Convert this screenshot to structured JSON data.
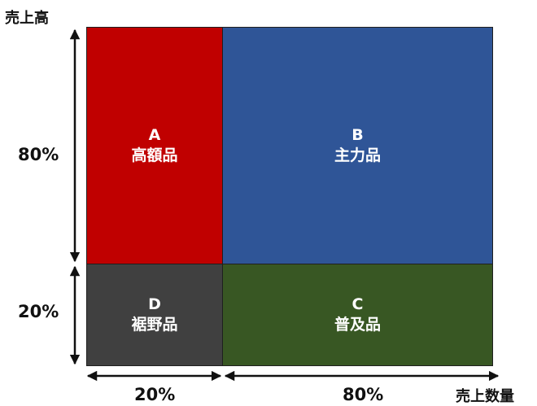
{
  "axes": {
    "y_title": "売上高",
    "x_title": "売上数量",
    "y_top_pct": "80%",
    "y_bottom_pct": "20%",
    "x_left_pct": "20%",
    "x_right_pct": "80%"
  },
  "quadrants": {
    "a": {
      "letter": "A",
      "name": "高額品",
      "color": "#c00000"
    },
    "b": {
      "letter": "B",
      "name": "主力品",
      "color": "#2f5597"
    },
    "c": {
      "letter": "C",
      "name": "普及品",
      "color": "#385723"
    },
    "d": {
      "letter": "D",
      "name": "裾野品",
      "color": "#404040"
    }
  }
}
